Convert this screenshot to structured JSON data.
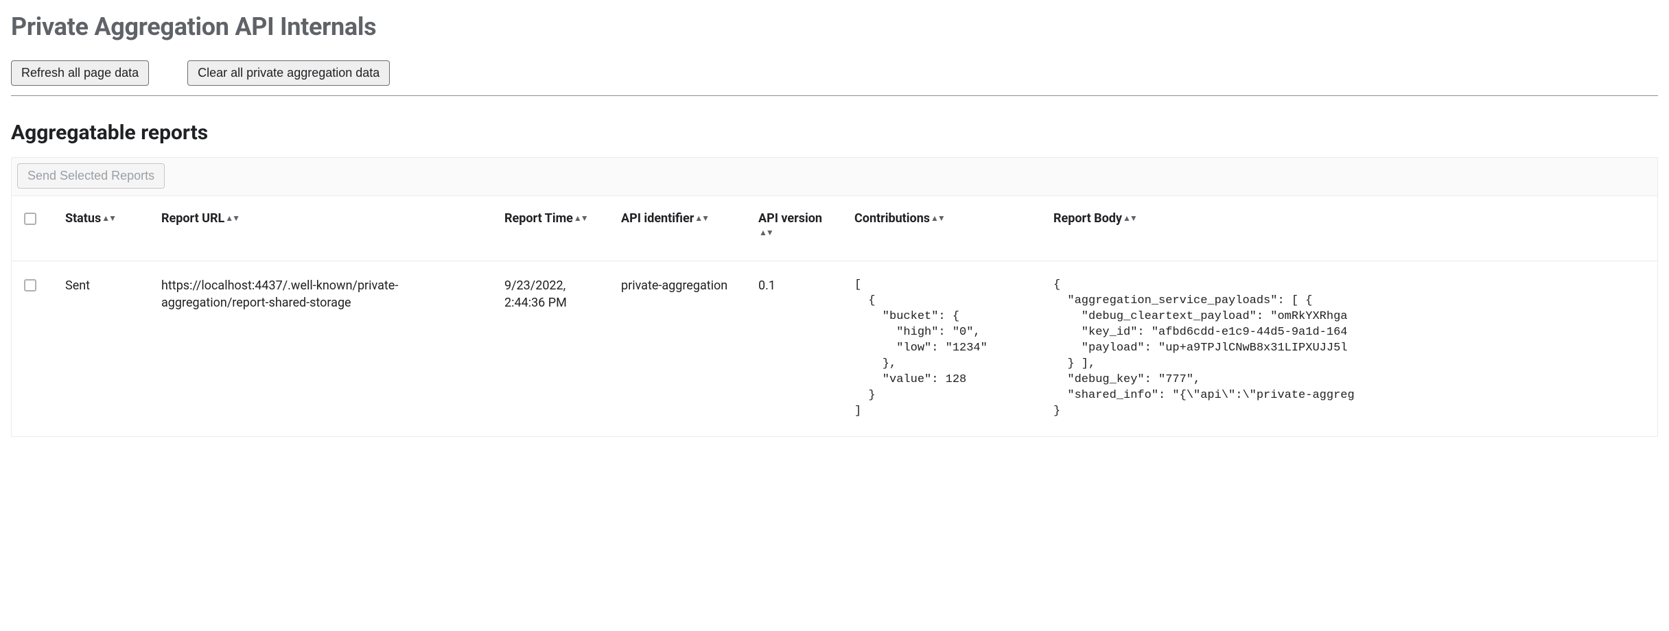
{
  "page": {
    "title": "Private Aggregation API Internals"
  },
  "toolbar": {
    "refresh_label": "Refresh all page data",
    "clear_label": "Clear all private aggregation data"
  },
  "section": {
    "title": "Aggregatable reports",
    "send_selected_label": "Send Selected Reports",
    "send_selected_enabled": false
  },
  "table": {
    "columns": [
      {
        "key": "status",
        "label": "Status",
        "sortable": true
      },
      {
        "key": "report_url",
        "label": "Report URL",
        "sortable": true
      },
      {
        "key": "report_time",
        "label": "Report Time",
        "sortable": true
      },
      {
        "key": "api_identifier",
        "label": "API identifier",
        "sortable": true
      },
      {
        "key": "api_version",
        "label": "API version",
        "sortable": true
      },
      {
        "key": "contributions",
        "label": "Contributions",
        "sortable": true
      },
      {
        "key": "report_body",
        "label": "Report Body",
        "sortable": true
      }
    ],
    "rows": [
      {
        "status": "Sent",
        "report_url": "https://localhost:4437/.well-known/private-aggregation/report-shared-storage",
        "report_time": "9/23/2022, 2:44:36 PM",
        "api_identifier": "private-aggregation",
        "api_version": "0.1",
        "contributions": "[\n  {\n    \"bucket\": {\n      \"high\": \"0\",\n      \"low\": \"1234\"\n    },\n    \"value\": 128\n  }\n]",
        "report_body": "{\n  \"aggregation_service_payloads\": [ {\n    \"debug_cleartext_payload\": \"omRkYXRhga\n    \"key_id\": \"afbd6cdd-e1c9-44d5-9a1d-164\n    \"payload\": \"up+a9TPJlCNwB8x31LIPXUJJ5l\n  } ],\n  \"debug_key\": \"777\",\n  \"shared_info\": \"{\\\"api\\\":\\\"private-aggreg\n}"
      }
    ]
  },
  "style": {
    "title_color": "#5f6368",
    "text_color": "#202124",
    "border_color": "#e8eaed",
    "disabled_text": "#9aa0a6",
    "mono_font": "SFMono-Regular, Consolas, Liberation Mono, Menlo, monospace"
  }
}
